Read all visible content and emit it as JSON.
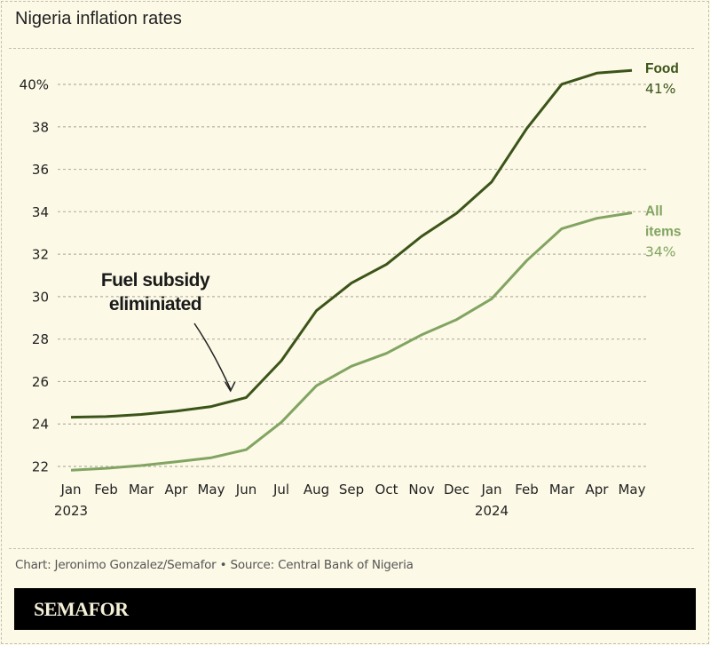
{
  "chart_data": {
    "type": "line",
    "title": "Nigeria inflation rates",
    "xlabel": "",
    "ylabel": "",
    "x": [
      "Jan",
      "Feb",
      "Mar",
      "Apr",
      "May",
      "Jun",
      "Jul",
      "Aug",
      "Sep",
      "Oct",
      "Nov",
      "Dec",
      "Jan",
      "Feb",
      "Mar",
      "Apr",
      "May"
    ],
    "year_labels": [
      {
        "index": 0,
        "label": "2023"
      },
      {
        "index": 12,
        "label": "2024"
      }
    ],
    "ylim": [
      22,
      40
    ],
    "yticks": [
      22,
      24,
      26,
      28,
      30,
      32,
      34,
      36,
      38,
      40
    ],
    "ytick_labels": [
      "22",
      "24",
      "26",
      "28",
      "30",
      "32",
      "34",
      "36",
      "38",
      "40%"
    ],
    "grid": true,
    "series": [
      {
        "name": "Food",
        "label_lines": [
          "Food"
        ],
        "end_label": "41%",
        "color": "#3b5419",
        "values": [
          24.32,
          24.35,
          24.45,
          24.61,
          24.82,
          25.25,
          26.98,
          29.34,
          30.64,
          31.52,
          32.84,
          33.93,
          35.41,
          37.92,
          40.01,
          40.53,
          40.66
        ]
      },
      {
        "name": "All items",
        "label_lines": [
          "All",
          "items"
        ],
        "end_label": "34%",
        "color": "#82a462",
        "values": [
          21.82,
          21.91,
          22.04,
          22.22,
          22.41,
          22.79,
          24.08,
          25.8,
          26.72,
          27.33,
          28.2,
          28.92,
          29.9,
          31.7,
          33.2,
          33.69,
          33.95
        ]
      }
    ],
    "annotations": [
      {
        "text_lines": [
          "Fuel subsidy",
          "eliminiated"
        ],
        "points_to_index": 4.6
      }
    ]
  },
  "footer": {
    "credit": "Chart: Jeronimo Gonzalez/Semafor • Source: Central Bank of Nigeria",
    "brand": "SEMAFOR"
  }
}
